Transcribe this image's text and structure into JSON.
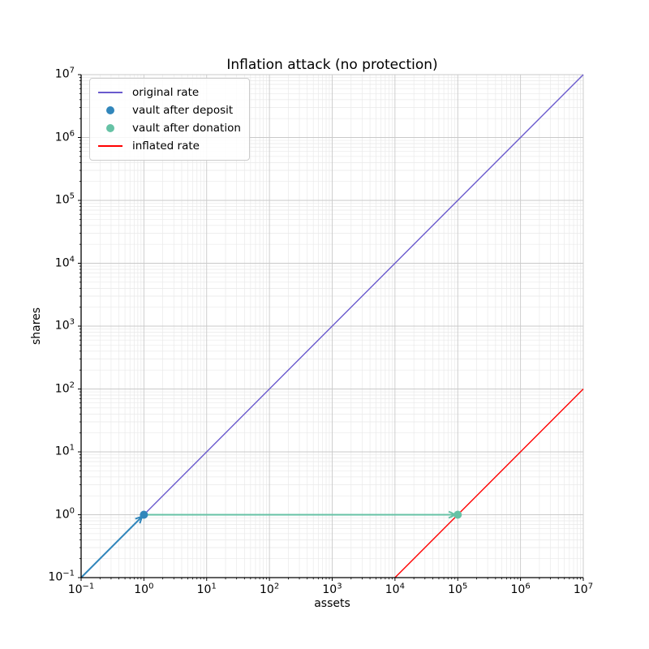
{
  "chart_data": {
    "type": "line",
    "title": "Inflation attack (no protection)",
    "xlabel": "assets",
    "ylabel": "shares",
    "xscale": "log",
    "yscale": "log",
    "xlim": [
      0.1,
      10000000
    ],
    "ylim": [
      0.1,
      10000000
    ],
    "x_tick_exponents": [
      -1,
      0,
      1,
      2,
      3,
      4,
      5,
      6,
      7
    ],
    "y_tick_exponents": [
      -1,
      0,
      1,
      2,
      3,
      4,
      5,
      6,
      7
    ],
    "grid": {
      "major": true,
      "minor": true,
      "major_color": "#c9c9c9",
      "minor_color": "#e9e9e9"
    },
    "series": [
      {
        "name": "original rate",
        "kind": "line",
        "color": "#6a5acd",
        "linewidth": 1.4,
        "points": [
          [
            0.1,
            0.1
          ],
          [
            10000000,
            10000000
          ]
        ]
      },
      {
        "name": "vault after deposit",
        "kind": "scatter",
        "color": "#3186bb",
        "markersize": 10,
        "points": [
          [
            1,
            1
          ]
        ]
      },
      {
        "name": "vault after donation",
        "kind": "scatter",
        "color": "#66c2a5",
        "markersize": 10,
        "points": [
          [
            100000,
            1
          ]
        ]
      },
      {
        "name": "inflated rate",
        "kind": "line",
        "color": "#ff0000",
        "linewidth": 1.4,
        "points": [
          [
            10000,
            0.1
          ],
          [
            10000000,
            100
          ]
        ]
      }
    ],
    "annotations": [
      {
        "kind": "arrow",
        "name": "deposit-arrow",
        "color": "#3186bb",
        "from": [
          0.1,
          0.1
        ],
        "to": [
          1,
          1
        ]
      },
      {
        "kind": "arrow",
        "name": "donation-arrow",
        "color": "#66c2a5",
        "from": [
          1,
          1
        ],
        "to": [
          100000,
          1
        ]
      }
    ],
    "legend": {
      "position": "upper left",
      "entries": [
        {
          "label": "original rate",
          "kind": "line",
          "color": "#6a5acd"
        },
        {
          "label": "vault after deposit",
          "kind": "scatter",
          "color": "#3186bb"
        },
        {
          "label": "vault after donation",
          "kind": "scatter",
          "color": "#66c2a5"
        },
        {
          "label": "inflated rate",
          "kind": "line",
          "color": "#ff0000"
        }
      ]
    },
    "axis_color": "#000000"
  }
}
